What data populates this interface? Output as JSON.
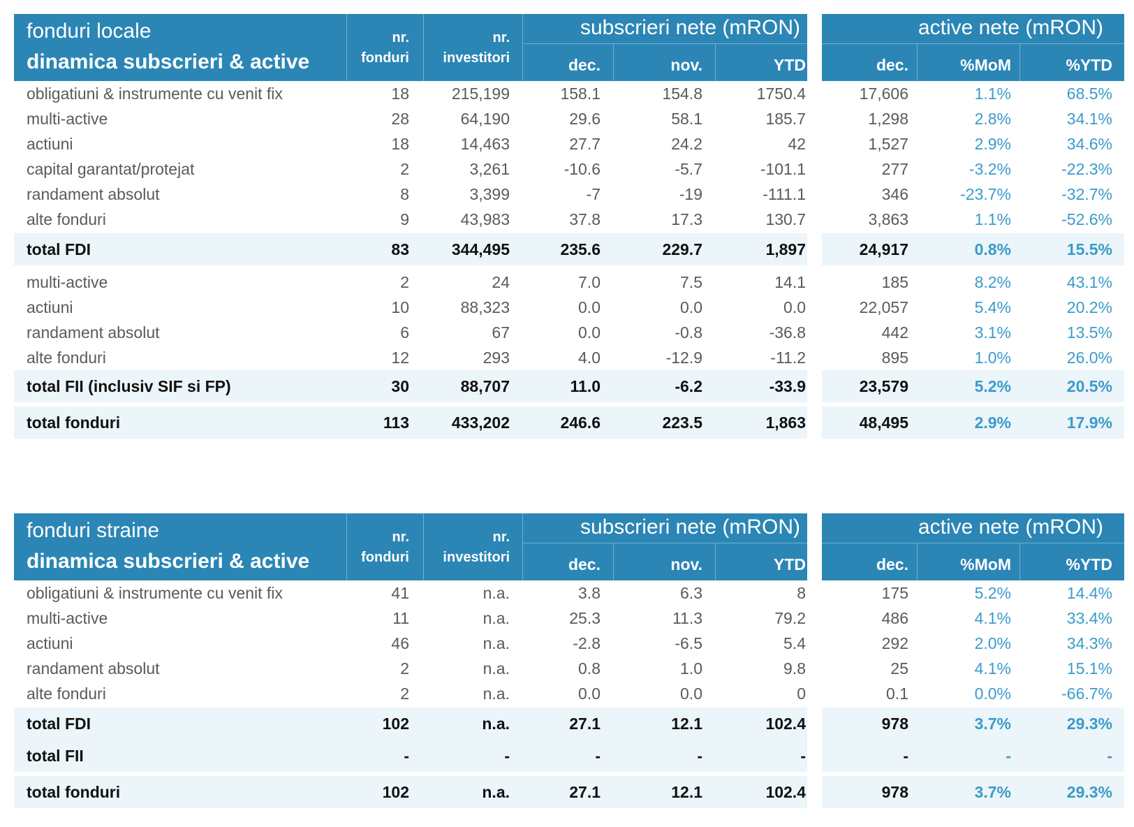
{
  "colors": {
    "header": "#2b86b5",
    "total_band": "#ecf5f9",
    "pct_text": "#3a9bca",
    "text": "#5a5a5a"
  },
  "tables": [
    {
      "title1": "fonduri locale",
      "title2": "dinamica subscrieri & active",
      "hdr": {
        "nr": "nr.",
        "fonduri": "fonduri",
        "investitori": "investitori",
        "subscrieri": "subscrieri nete (mRON)",
        "active": "active nete (mRON)",
        "dec": "dec.",
        "nov": "nov.",
        "ytd": "YTD",
        "dec2": "dec.",
        "mom": "%MoM",
        "pytd": "%YTD"
      },
      "rows": [
        {
          "label": "obligatiuni & instrumente cu venit fix",
          "v": [
            "18",
            "215,199",
            "158.1",
            "154.8",
            "1750.4",
            "17,606",
            "1.1%",
            "68.5%"
          ]
        },
        {
          "label": "multi-active",
          "v": [
            "28",
            "64,190",
            "29.6",
            "58.1",
            "185.7",
            "1,298",
            "2.8%",
            "34.1%"
          ]
        },
        {
          "label": "actiuni",
          "v": [
            "18",
            "14,463",
            "27.7",
            "24.2",
            "42",
            "1,527",
            "2.9%",
            "34.6%"
          ]
        },
        {
          "label": "capital garantat/protejat",
          "v": [
            "2",
            "3,261",
            "-10.6",
            "-5.7",
            "-101.1",
            "277",
            "-3.2%",
            "-22.3%"
          ]
        },
        {
          "label": "randament absolut",
          "v": [
            "8",
            "3,399",
            "-7",
            "-19",
            "-111.1",
            "346",
            "-23.7%",
            "-32.7%"
          ]
        },
        {
          "label": "alte fonduri",
          "v": [
            "9",
            "43,983",
            "37.8",
            "17.3",
            "130.7",
            "3,863",
            "1.1%",
            "-52.6%"
          ]
        },
        {
          "label": "total FDI",
          "v": [
            "83",
            "344,495",
            "235.6",
            "229.7",
            "1,897",
            "24,917",
            "0.8%",
            "15.5%"
          ]
        },
        {
          "label": "multi-active",
          "v": [
            "2",
            "24",
            "7.0",
            "7.5",
            "14.1",
            "185",
            "8.2%",
            "43.1%"
          ]
        },
        {
          "label": "actiuni",
          "v": [
            "10",
            "88,323",
            "0.0",
            "0.0",
            "0.0",
            "22,057",
            "5.4%",
            "20.2%"
          ]
        },
        {
          "label": "randament absolut",
          "v": [
            "6",
            "67",
            "0.0",
            "-0.8",
            "-36.8",
            "442",
            "3.1%",
            "13.5%"
          ]
        },
        {
          "label": "alte fonduri",
          "v": [
            "12",
            "293",
            "4.0",
            "-12.9",
            "-11.2",
            "895",
            "1.0%",
            "26.0%"
          ]
        },
        {
          "label": "total FII (inclusiv SIF si FP)",
          "v": [
            "30",
            "88,707",
            "11.0",
            "-6.2",
            "-33.9",
            "23,579",
            "5.2%",
            "20.5%"
          ]
        },
        {
          "label": "total fonduri",
          "v": [
            "113",
            "433,202",
            "246.6",
            "223.5",
            "1,863",
            "48,495",
            "2.9%",
            "17.9%"
          ]
        }
      ]
    },
    {
      "title1": "fonduri straine",
      "title2": "dinamica subscrieri & active",
      "hdr": {
        "nr": "nr.",
        "fonduri": "fonduri",
        "investitori": "investitori",
        "subscrieri": "subscrieri nete (mRON)",
        "active": "active nete (mRON)",
        "dec": "dec.",
        "nov": "nov.",
        "ytd": "YTD",
        "dec2": "dec.",
        "mom": "%MoM",
        "pytd": "%YTD"
      },
      "rows": [
        {
          "label": "obligatiuni & instrumente cu venit fix",
          "v": [
            "41",
            "n.a.",
            "3.8",
            "6.3",
            "8",
            "175",
            "5.2%",
            "14.4%"
          ]
        },
        {
          "label": "multi-active",
          "v": [
            "11",
            "n.a.",
            "25.3",
            "11.3",
            "79.2",
            "486",
            "4.1%",
            "33.4%"
          ]
        },
        {
          "label": "actiuni",
          "v": [
            "46",
            "n.a.",
            "-2.8",
            "-6.5",
            "5.4",
            "292",
            "2.0%",
            "34.3%"
          ]
        },
        {
          "label": "randament absolut",
          "v": [
            "2",
            "n.a.",
            "0.8",
            "1.0",
            "9.8",
            "25",
            "4.1%",
            "15.1%"
          ]
        },
        {
          "label": "alte fonduri",
          "v": [
            "2",
            "n.a.",
            "0.0",
            "0.0",
            "0",
            "0.1",
            "0.0%",
            "-66.7%"
          ]
        },
        {
          "label": "total FDI",
          "v": [
            "102",
            "n.a.",
            "27.1",
            "12.1",
            "102.4",
            "978",
            "3.7%",
            "29.3%"
          ]
        },
        {
          "label": "total FII",
          "v": [
            "-",
            "-",
            "-",
            "-",
            "-",
            "-",
            "-",
            "-"
          ]
        },
        {
          "label": "total fonduri",
          "v": [
            "102",
            "n.a.",
            "27.1",
            "12.1",
            "102.4",
            "978",
            "3.7%",
            "29.3%"
          ]
        }
      ]
    }
  ]
}
